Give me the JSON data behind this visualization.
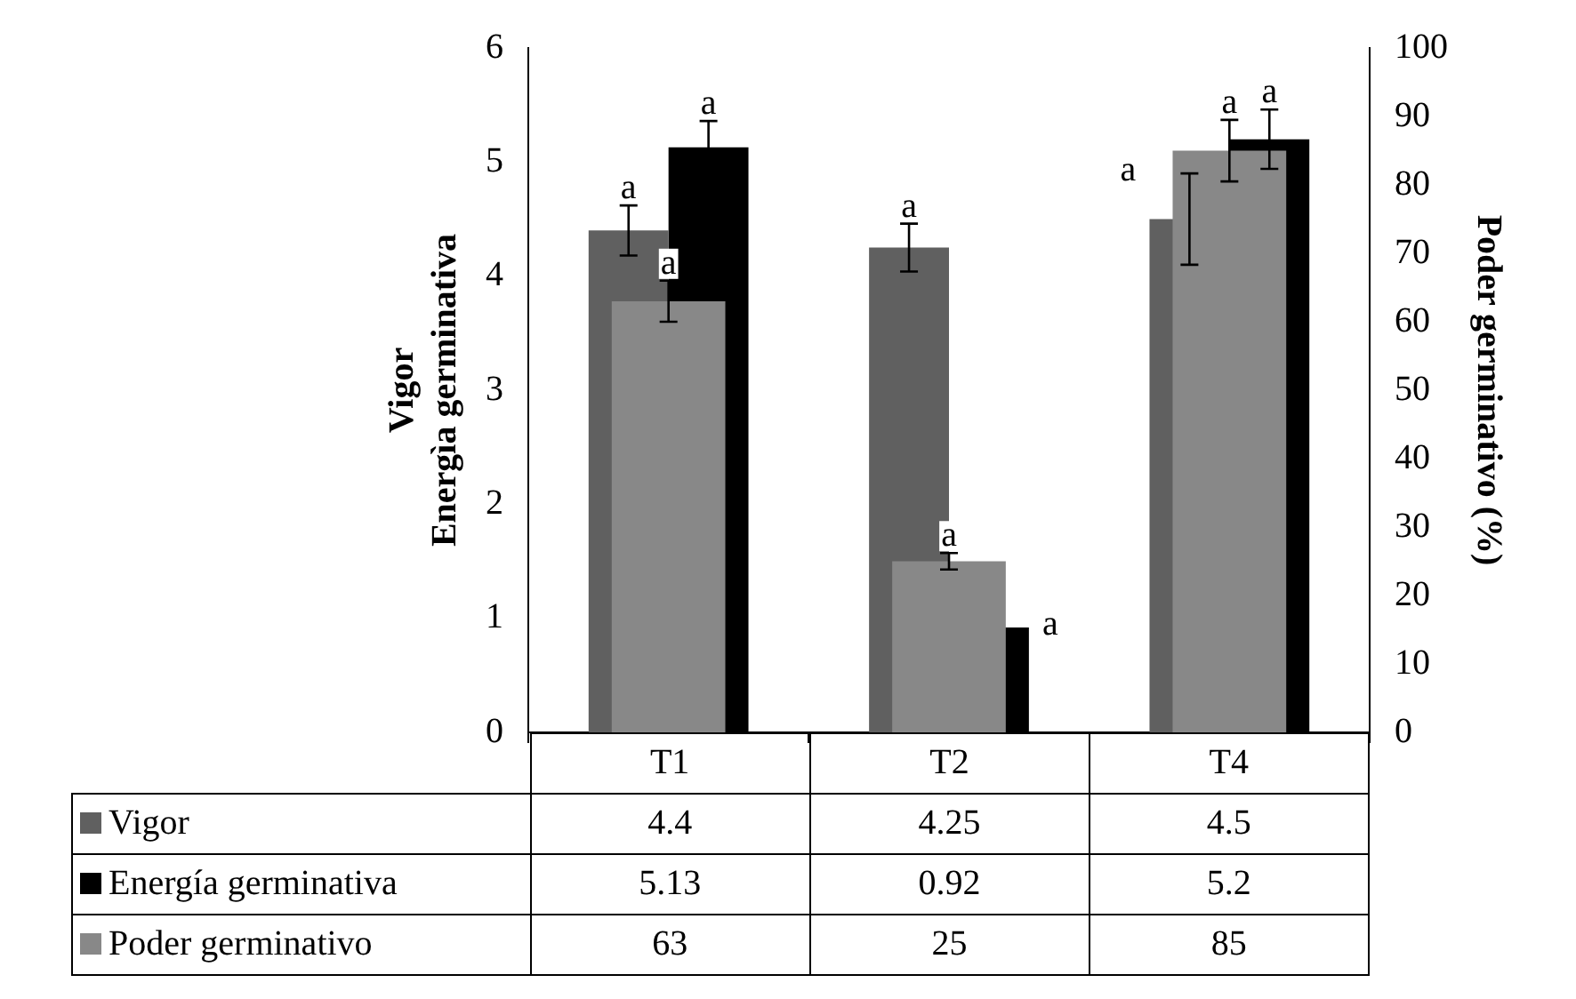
{
  "chart_data": {
    "type": "bar",
    "ylabel": "Vigor\nEnergìa germinativa",
    "y2label": "Poder germinativo (%)",
    "categories": [
      "T1",
      "T2",
      "T4"
    ],
    "series": [
      {
        "name": "Vigor",
        "color": "#606060",
        "values": [
          4.4,
          4.25,
          4.5
        ],
        "errors": [
          0.22,
          0.21,
          0.4
        ]
      },
      {
        "name": "Energía germinativa",
        "color": "#000000",
        "values": [
          5.13,
          0.92,
          5.2
        ],
        "errors": [
          0.23,
          null,
          0.26
        ]
      },
      {
        "name": "Poder germinativo",
        "color": "#888888",
        "values": [
          63,
          25,
          85
        ],
        "errors": [
          3,
          1.2,
          4.5
        ],
        "axis": "y2"
      }
    ],
    "ylim": [
      0,
      6
    ],
    "yticks": [
      0,
      1,
      2,
      3,
      4,
      5,
      6
    ],
    "y2lim": [
      0,
      100
    ],
    "y2ticks": [
      0,
      10,
      20,
      30,
      40,
      50,
      60,
      70,
      80,
      90,
      100
    ],
    "grid": false,
    "data_labels": true,
    "legend": "bottom",
    "annotations": [
      "a",
      "a",
      "a",
      "a",
      "a",
      "a",
      "a",
      "a",
      "a"
    ]
  }
}
